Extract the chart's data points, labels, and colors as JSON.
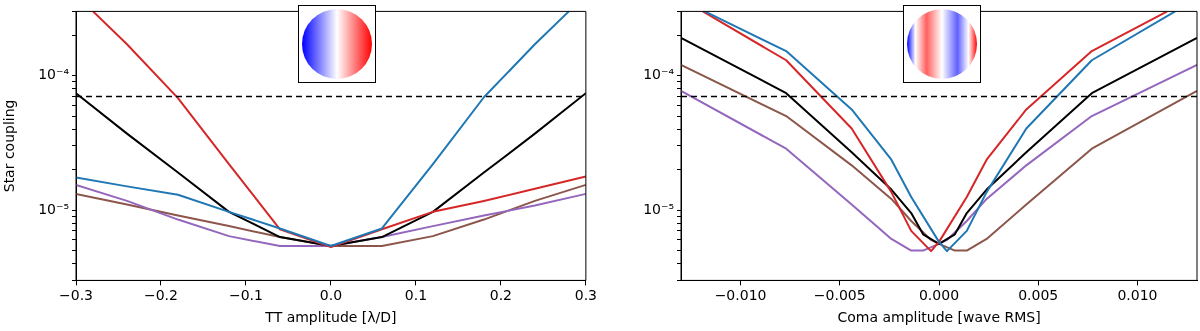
{
  "chart_data": [
    {
      "type": "line",
      "xlabel": "TT amplitude [λ/D]",
      "ylabel": "Star coupling",
      "log": "y",
      "grid": false,
      "legend": false,
      "marker": "none",
      "line_style": "solid",
      "xlim": [
        -0.3,
        0.3
      ],
      "xticks": [
        {
          "value": -0.3,
          "label": "−0.3"
        },
        {
          "value": -0.2,
          "label": "−0.2"
        },
        {
          "value": -0.1,
          "label": "−0.1"
        },
        {
          "value": 0,
          "label": "0.0"
        },
        0.1,
        0.2,
        0.3
      ],
      "ylim": [
        3e-06,
        0.0003
      ],
      "yticks": [
        {
          "value": 3e-06,
          "label": null
        },
        {
          "value": 4e-06,
          "label": null
        },
        {
          "value": 5e-06,
          "label": null
        },
        {
          "value": 6e-06,
          "label": null
        },
        {
          "value": 7e-06,
          "label": null
        },
        {
          "value": 8e-06,
          "label": null
        },
        {
          "value": 9e-06,
          "label": null
        },
        {
          "value": 1e-05,
          "label": "10⁻⁵"
        },
        {
          "value": 2e-05,
          "label": null
        },
        {
          "value": 3e-05,
          "label": null
        },
        {
          "value": 4e-05,
          "label": null
        },
        {
          "value": 5e-05,
          "label": null
        },
        {
          "value": 6e-05,
          "label": null
        },
        {
          "value": 7e-05,
          "label": null
        },
        {
          "value": 8e-05,
          "label": null
        },
        {
          "value": 9e-05,
          "label": null
        },
        {
          "value": 0.0001,
          "label": "10⁻⁴"
        },
        {
          "value": 0.0002,
          "label": null
        },
        {
          "value": 0.0003,
          "label": null
        }
      ],
      "ref_lines": [
        {
          "axis": "y",
          "value": 7e-05,
          "color": "#000000",
          "line_style": "dashed"
        }
      ],
      "series": [
        {
          "color": "#1f77b4",
          "x": [
            -0.3,
            -0.24,
            -0.18,
            -0.12,
            -0.06,
            0,
            0.06,
            0.12,
            0.18,
            0.24,
            0.28
          ],
          "values": [
            1.75e-05,
            1.5e-05,
            1.3e-05,
            9.7e-06,
            7.3e-06,
            5.4e-06,
            7.3e-06,
            2.2e-05,
            6.9e-05,
            0.000171,
            0.0003
          ]
        },
        {
          "color": "#d62728",
          "x": [
            -0.28,
            -0.24,
            -0.18,
            -0.12,
            -0.06,
            0,
            0.06,
            0.12,
            0.18,
            0.24,
            0.3
          ],
          "values": [
            0.0003,
            0.000171,
            6.8e-05,
            2.2e-05,
            7.2e-06,
            5.3e-06,
            7.2e-06,
            9.7e-06,
            1.17e-05,
            1.44e-05,
            1.78e-05
          ]
        },
        {
          "color": "#000000",
          "x": [
            -0.3,
            -0.24,
            -0.18,
            -0.12,
            -0.06,
            0,
            0.06,
            0.12,
            0.18,
            0.24,
            0.3
          ],
          "values": [
            7.4e-05,
            3.7e-05,
            1.9e-05,
            9.7e-06,
            6.3e-06,
            5.4e-06,
            6.3e-06,
            9.7e-06,
            1.9e-05,
            3.7e-05,
            7.4e-05
          ]
        },
        {
          "color": "#9467bd",
          "x": [
            -0.3,
            -0.24,
            -0.18,
            -0.12,
            -0.06,
            0,
            0.06,
            0.12,
            0.18,
            0.24,
            0.3
          ],
          "values": [
            1.54e-05,
            1.17e-05,
            8.5e-06,
            6.4e-06,
            5.4e-06,
            5.4e-06,
            6.3e-06,
            7.6e-06,
            9.1e-06,
            1.08e-05,
            1.32e-05
          ]
        },
        {
          "color": "#8c564b",
          "x": [
            -0.3,
            -0.24,
            -0.18,
            -0.12,
            -0.06,
            0,
            0.06,
            0.12,
            0.18,
            0.24,
            0.3
          ],
          "values": [
            1.32e-05,
            1.1e-05,
            9.1e-06,
            7.6e-06,
            6.3e-06,
            5.4e-06,
            5.4e-06,
            6.4e-06,
            8.5e-06,
            1.17e-05,
            1.54e-05
          ]
        }
      ]
    },
    {
      "type": "line",
      "xlabel": "Coma amplitude [wave RMS]",
      "log": "y",
      "grid": false,
      "legend": false,
      "marker": "none",
      "line_style": "solid",
      "xlim": [
        -0.013,
        0.013
      ],
      "xticks": [
        {
          "value": -0.01,
          "label": "−0.010"
        },
        {
          "value": -0.005,
          "label": "−0.005"
        },
        {
          "value": 0,
          "label": "0.000"
        },
        {
          "value": 0.005,
          "label": "0.005"
        },
        {
          "value": 0.01,
          "label": "0.010"
        }
      ],
      "ylim": [
        3e-06,
        0.0003
      ],
      "yticks": [
        {
          "value": 3e-06,
          "label": null
        },
        {
          "value": 4e-06,
          "label": null
        },
        {
          "value": 5e-06,
          "label": null
        },
        {
          "value": 6e-06,
          "label": null
        },
        {
          "value": 7e-06,
          "label": null
        },
        {
          "value": 8e-06,
          "label": null
        },
        {
          "value": 9e-06,
          "label": null
        },
        {
          "value": 1e-05,
          "label": "10⁻⁵"
        },
        {
          "value": 2e-05,
          "label": null
        },
        {
          "value": 3e-05,
          "label": null
        },
        {
          "value": 4e-05,
          "label": null
        },
        {
          "value": 5e-05,
          "label": null
        },
        {
          "value": 6e-05,
          "label": null
        },
        {
          "value": 7e-05,
          "label": null
        },
        {
          "value": 8e-05,
          "label": null
        },
        {
          "value": 9e-05,
          "label": null
        },
        {
          "value": 0.0001,
          "label": "10⁻⁴"
        },
        {
          "value": 0.0002,
          "label": null
        },
        {
          "value": 0.0003,
          "label": null
        }
      ],
      "ref_lines": [
        {
          "axis": "y",
          "value": 7e-05,
          "color": "#000000",
          "line_style": "dashed"
        }
      ],
      "series": [
        {
          "color": "#1f77b4",
          "x": [
            -0.0118,
            -0.0077,
            -0.0044,
            -0.0024,
            -0.0014,
            0,
            0.0004,
            0.0014,
            0.0024,
            0.0044,
            0.0077,
            0.0119
          ],
          "values": [
            0.0003,
            0.000152,
            5.6e-05,
            2.37e-05,
            1.25e-05,
            5.8e-06,
            4.95e-06,
            7e-06,
            1.36e-05,
            4.04e-05,
            0.00013,
            0.0003
          ]
        },
        {
          "color": "#d62728",
          "x": [
            -0.0119,
            -0.0077,
            -0.0044,
            -0.0024,
            -0.0014,
            -0.0004,
            0,
            0.0014,
            0.0024,
            0.0044,
            0.0077,
            0.0115
          ],
          "values": [
            0.0003,
            0.00013,
            4.04e-05,
            1.36e-05,
            7e-06,
            4.95e-06,
            5.8e-06,
            1.25e-05,
            2.37e-05,
            5.6e-05,
            0.000152,
            0.0003
          ]
        },
        {
          "color": "#000000",
          "x": [
            -0.013,
            -0.0077,
            -0.0044,
            -0.0024,
            -0.0014,
            -0.0008,
            0,
            0.0008,
            0.0014,
            0.0024,
            0.0044,
            0.0077,
            0.013
          ],
          "values": [
            0.000191,
            7.4e-05,
            2.69e-05,
            1.42e-05,
            9.5e-06,
            6.6e-06,
            5.6e-06,
            6.6e-06,
            9.5e-06,
            1.42e-05,
            2.69e-05,
            7.4e-05,
            0.000191
          ]
        },
        {
          "color": "#9467bd",
          "x": [
            -0.013,
            -0.0077,
            -0.0044,
            -0.0024,
            -0.0014,
            -0.0008,
            0,
            0.0004,
            0.0014,
            0.0024,
            0.0044,
            0.0077,
            0.013
          ],
          "values": [
            7.7e-05,
            2.86e-05,
            1.1e-05,
            6.1e-06,
            5e-06,
            5e-06,
            5.6e-06,
            6e-06,
            8.3e-06,
            1.21e-05,
            2.15e-05,
            5e-05,
            0.00012
          ]
        },
        {
          "color": "#8c564b",
          "x": [
            -0.013,
            -0.0077,
            -0.0044,
            -0.0024,
            -0.0014,
            -0.0004,
            0,
            0.0008,
            0.0014,
            0.0024,
            0.0044,
            0.0077,
            0.013
          ],
          "values": [
            0.00012,
            5e-05,
            2.15e-05,
            1.21e-05,
            8.3e-06,
            6e-06,
            5.6e-06,
            5e-06,
            5e-06,
            6.1e-06,
            1.1e-05,
            2.86e-05,
            7.7e-05
          ]
        }
      ]
    }
  ]
}
